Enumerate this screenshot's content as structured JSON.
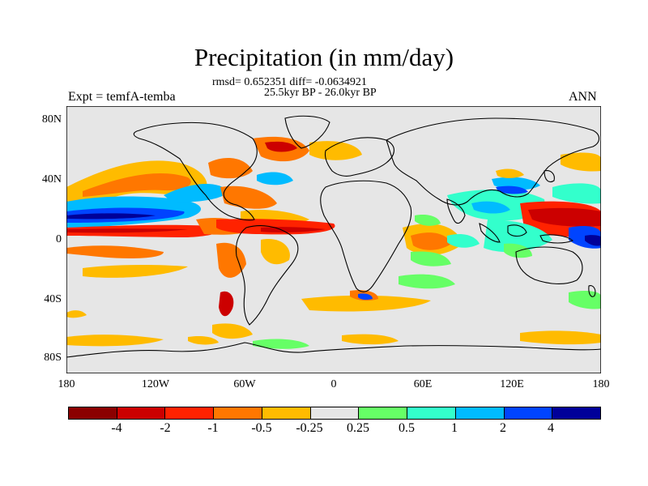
{
  "figure": {
    "title": "Precipitation (in mm/day)",
    "stats": "rmsd= 0.652351 diff= -0.0634921",
    "period": "25.5kyr BP - 26.0kyr BP",
    "experiment": "Expt = temfA-temba",
    "season": "ANN"
  },
  "axes": {
    "lat_labels": [
      "80N",
      "40N",
      "0",
      "40S",
      "80S"
    ],
    "lon_labels": [
      "180",
      "120W",
      "60W",
      "0",
      "60E",
      "120E",
      "180"
    ]
  },
  "colorbar": {
    "colors": [
      "#8b0000",
      "#cc0000",
      "#ff2200",
      "#ff7700",
      "#ffbb00",
      "#e6e6e6",
      "#66ff66",
      "#33ffcc",
      "#00bbff",
      "#0044ff",
      "#000099"
    ],
    "labels": [
      "-4",
      "-2",
      "-1",
      "-0.5",
      "-0.25",
      "0.25",
      "0.5",
      "1",
      "2",
      "4"
    ]
  }
}
